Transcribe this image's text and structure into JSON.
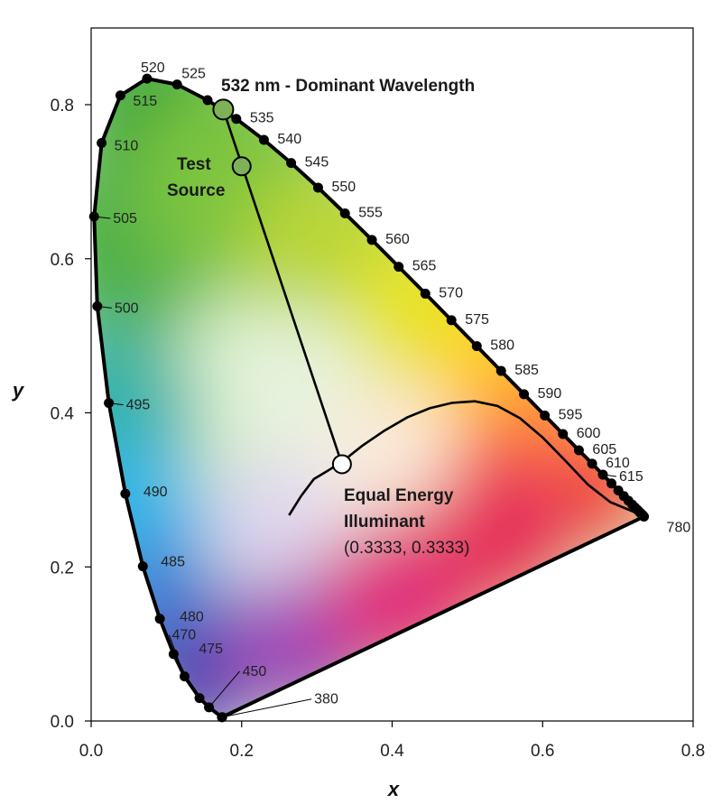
{
  "chart_data": {
    "type": "scatter",
    "xlabel": "x",
    "ylabel": "y",
    "xlim": [
      0.0,
      0.8
    ],
    "ylim": [
      0.0,
      0.9
    ],
    "xticks": [
      "0.0",
      "0.2",
      "0.4",
      "0.6",
      "0.8"
    ],
    "yticks": [
      "0.0",
      "0.2",
      "0.4",
      "0.6",
      "0.8"
    ],
    "xtick_values": [
      0.0,
      0.2,
      0.4,
      0.6,
      0.8
    ],
    "ytick_values": [
      0.0,
      0.2,
      0.4,
      0.6,
      0.8
    ],
    "grid": false,
    "spectral_locus": [
      {
        "label": "380",
        "x": 0.1741,
        "y": 0.005
      },
      {
        "label": "",
        "x": 0.1738,
        "y": 0.0049
      },
      {
        "label": "450",
        "x": 0.1566,
        "y": 0.0177
      },
      {
        "label": "",
        "x": 0.144,
        "y": 0.0297
      },
      {
        "label": "470",
        "x": 0.1241,
        "y": 0.0578
      },
      {
        "label": "475",
        "x": 0.1096,
        "y": 0.0868
      },
      {
        "label": "480",
        "x": 0.0913,
        "y": 0.1327
      },
      {
        "label": "485",
        "x": 0.0687,
        "y": 0.2007
      },
      {
        "label": "490",
        "x": 0.0454,
        "y": 0.295
      },
      {
        "label": "495",
        "x": 0.0235,
        "y": 0.4127
      },
      {
        "label": "500",
        "x": 0.0082,
        "y": 0.5384
      },
      {
        "label": "505",
        "x": 0.0039,
        "y": 0.6548
      },
      {
        "label": "510",
        "x": 0.0139,
        "y": 0.7502
      },
      {
        "label": "515",
        "x": 0.0389,
        "y": 0.812
      },
      {
        "label": "520",
        "x": 0.0743,
        "y": 0.8338
      },
      {
        "label": "525",
        "x": 0.1142,
        "y": 0.8262
      },
      {
        "label": "",
        "x": 0.1547,
        "y": 0.8059
      },
      {
        "label": "535",
        "x": 0.1929,
        "y": 0.7816
      },
      {
        "label": "540",
        "x": 0.2296,
        "y": 0.7543
      },
      {
        "label": "545",
        "x": 0.2658,
        "y": 0.7243
      },
      {
        "label": "550",
        "x": 0.3016,
        "y": 0.6923
      },
      {
        "label": "555",
        "x": 0.3373,
        "y": 0.6589
      },
      {
        "label": "560",
        "x": 0.3731,
        "y": 0.6245
      },
      {
        "label": "565",
        "x": 0.4087,
        "y": 0.5896
      },
      {
        "label": "570",
        "x": 0.4441,
        "y": 0.5547
      },
      {
        "label": "575",
        "x": 0.4788,
        "y": 0.5202
      },
      {
        "label": "580",
        "x": 0.5125,
        "y": 0.4866
      },
      {
        "label": "585",
        "x": 0.5448,
        "y": 0.4544
      },
      {
        "label": "590",
        "x": 0.5752,
        "y": 0.4242
      },
      {
        "label": "595",
        "x": 0.6029,
        "y": 0.3965
      },
      {
        "label": "600",
        "x": 0.627,
        "y": 0.3725
      },
      {
        "label": "605",
        "x": 0.6482,
        "y": 0.3514
      },
      {
        "label": "610",
        "x": 0.6658,
        "y": 0.334
      },
      {
        "label": "615",
        "x": 0.6801,
        "y": 0.3197
      },
      {
        "label": "",
        "x": 0.6915,
        "y": 0.3083
      },
      {
        "label": "",
        "x": 0.7006,
        "y": 0.2993
      },
      {
        "label": "",
        "x": 0.7079,
        "y": 0.292
      },
      {
        "label": "",
        "x": 0.714,
        "y": 0.2859
      },
      {
        "label": "",
        "x": 0.719,
        "y": 0.2809
      },
      {
        "label": "",
        "x": 0.723,
        "y": 0.277
      },
      {
        "label": "",
        "x": 0.726,
        "y": 0.274
      },
      {
        "label": "",
        "x": 0.7283,
        "y": 0.2717
      },
      {
        "label": "",
        "x": 0.73,
        "y": 0.27
      },
      {
        "label": "",
        "x": 0.7311,
        "y": 0.2689
      },
      {
        "label": "",
        "x": 0.732,
        "y": 0.268
      },
      {
        "label": "",
        "x": 0.7327,
        "y": 0.2673
      },
      {
        "label": "",
        "x": 0.7334,
        "y": 0.2666
      },
      {
        "label": "",
        "x": 0.734,
        "y": 0.266
      },
      {
        "label": "780",
        "x": 0.7347,
        "y": 0.2653
      }
    ],
    "planckian_locus": [
      [
        0.263,
        0.267
      ],
      [
        0.279,
        0.292
      ],
      [
        0.296,
        0.314
      ],
      [
        0.313,
        0.324
      ],
      [
        0.333,
        0.336
      ],
      [
        0.36,
        0.357
      ],
      [
        0.39,
        0.377
      ],
      [
        0.42,
        0.394
      ],
      [
        0.45,
        0.406
      ],
      [
        0.48,
        0.413
      ],
      [
        0.51,
        0.415
      ],
      [
        0.54,
        0.409
      ],
      [
        0.57,
        0.393
      ],
      [
        0.6,
        0.368
      ],
      [
        0.63,
        0.338
      ],
      [
        0.66,
        0.307
      ],
      [
        0.69,
        0.284
      ],
      [
        0.72,
        0.272
      ],
      [
        0.735,
        0.266
      ]
    ],
    "points": [
      {
        "name": "dominant",
        "x": 0.1756,
        "y": 0.7937,
        "fill": "#7fb158"
      },
      {
        "name": "test_source",
        "x": 0.2,
        "y": 0.72,
        "fill": "#7fb158"
      },
      {
        "name": "equal_energy",
        "x": 0.3333,
        "y": 0.3333,
        "fill": "#ffffff"
      }
    ],
    "annotations": {
      "dominant_label": "532 nm - Dominant Wavelength",
      "test_source_line1": "Test",
      "test_source_line2": "Source",
      "ee_line1": "Equal Energy",
      "ee_line2": "Illuminant",
      "ee_coords": "(0.3333, 0.3333)"
    }
  }
}
